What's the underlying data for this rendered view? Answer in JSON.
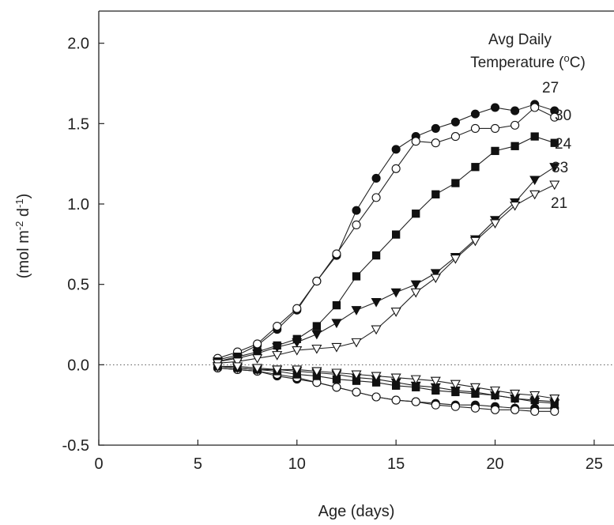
{
  "chart_data": {
    "type": "line",
    "xlabel": "Age (days)",
    "ylabel": "(mol m⁻² d⁻¹)",
    "ylabel_parts": [
      "(mol m",
      "-2",
      " d",
      "-1",
      ")"
    ],
    "xlim": [
      0,
      26
    ],
    "ylim": [
      -0.5,
      2.2
    ],
    "xticks": [
      0,
      5,
      10,
      15,
      20,
      25
    ],
    "xtick_labels": [
      "0",
      "5",
      "10",
      "15",
      "20",
      "25"
    ],
    "yticks": [
      -0.5,
      0.0,
      0.5,
      1.0,
      1.5,
      2.0
    ],
    "ytick_labels": [
      "-0.5",
      "0.0",
      "0.5",
      "1.0",
      "1.5",
      "2.0"
    ],
    "grid": false,
    "zero_line": true,
    "legend_title_line1": "Avg Daily",
    "legend_title_line2_parts": [
      "Temperature (",
      "o",
      "C)"
    ],
    "legend_placement": "top-right",
    "x": [
      6,
      7,
      8,
      9,
      10,
      11,
      12,
      13,
      14,
      15,
      16,
      17,
      18,
      19,
      20,
      21,
      22,
      23
    ],
    "series": [
      {
        "name": "27",
        "marker": "circle-filled",
        "values": [
          0.03,
          0.06,
          0.12,
          0.22,
          0.34,
          0.52,
          0.68,
          0.96,
          1.16,
          1.34,
          1.42,
          1.47,
          1.51,
          1.56,
          1.6,
          1.58,
          1.62,
          1.58
        ],
        "lower": [
          -0.02,
          -0.03,
          -0.04,
          -0.07,
          -0.09,
          -0.11,
          -0.14,
          -0.17,
          -0.2,
          -0.22,
          -0.23,
          -0.24,
          -0.25,
          -0.25,
          -0.26,
          -0.27,
          -0.27,
          -0.27
        ]
      },
      {
        "name": "30",
        "marker": "circle-open",
        "values": [
          0.04,
          0.08,
          0.13,
          0.24,
          0.35,
          0.52,
          0.69,
          0.87,
          1.04,
          1.22,
          1.39,
          1.38,
          1.42,
          1.47,
          1.47,
          1.49,
          1.6,
          1.54
        ],
        "lower": [
          -0.02,
          -0.03,
          -0.04,
          -0.06,
          -0.08,
          -0.11,
          -0.14,
          -0.17,
          -0.2,
          -0.22,
          -0.23,
          -0.25,
          -0.26,
          -0.27,
          -0.28,
          -0.28,
          -0.29,
          -0.29
        ]
      },
      {
        "name": "24",
        "marker": "square-filled",
        "values": [
          0.02,
          0.05,
          0.08,
          0.12,
          0.16,
          0.24,
          0.37,
          0.55,
          0.68,
          0.81,
          0.94,
          1.06,
          1.13,
          1.23,
          1.33,
          1.36,
          1.42,
          1.38
        ],
        "lower": [
          -0.01,
          -0.02,
          -0.03,
          -0.04,
          -0.06,
          -0.07,
          -0.09,
          -0.1,
          -0.11,
          -0.13,
          -0.14,
          -0.16,
          -0.17,
          -0.18,
          -0.19,
          -0.21,
          -0.22,
          -0.23
        ]
      },
      {
        "name": "33",
        "marker": "triangle-down-filled",
        "values": [
          0.02,
          0.04,
          0.07,
          0.11,
          0.14,
          0.19,
          0.26,
          0.34,
          0.39,
          0.45,
          0.5,
          0.57,
          0.67,
          0.78,
          0.9,
          1.01,
          1.15,
          1.23
        ],
        "lower": [
          -0.01,
          -0.02,
          -0.03,
          -0.03,
          -0.04,
          -0.05,
          -0.06,
          -0.08,
          -0.09,
          -0.11,
          -0.13,
          -0.14,
          -0.16,
          -0.17,
          -0.19,
          -0.21,
          -0.23,
          -0.24
        ]
      },
      {
        "name": "21",
        "marker": "triangle-down-open",
        "values": [
          0.01,
          0.02,
          0.04,
          0.06,
          0.09,
          0.1,
          0.11,
          0.14,
          0.22,
          0.33,
          0.45,
          0.54,
          0.66,
          0.77,
          0.88,
          0.99,
          1.06,
          1.12
        ],
        "lower": [
          -0.01,
          -0.01,
          -0.02,
          -0.03,
          -0.03,
          -0.04,
          -0.05,
          -0.06,
          -0.07,
          -0.08,
          -0.09,
          -0.1,
          -0.12,
          -0.14,
          -0.16,
          -0.18,
          -0.19,
          -0.21
        ]
      }
    ]
  }
}
